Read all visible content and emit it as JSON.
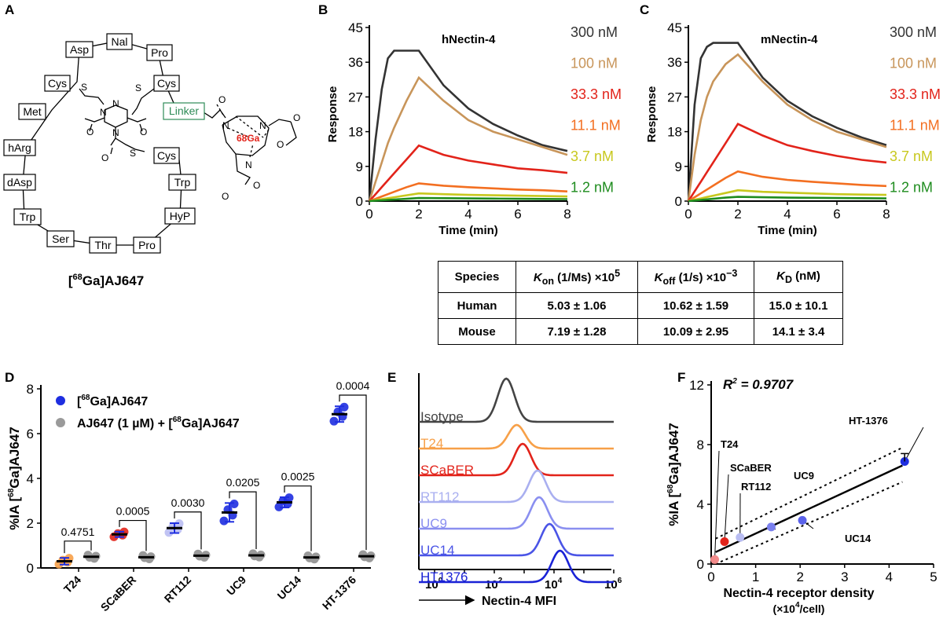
{
  "panels": {
    "A": "A",
    "B": "B",
    "C": "C",
    "D": "D",
    "E": "E",
    "F": "F"
  },
  "panelA": {
    "compound": "[68Ga]AJ647",
    "residues": [
      "Asp",
      "Nal",
      "Pro",
      "Cys",
      "Cys",
      "Linker",
      "Met",
      "hArg",
      "dAsp",
      "Trp",
      "Ser",
      "Thr",
      "Pro",
      "HyP",
      "Trp",
      "Cys"
    ],
    "atoms": {
      "S": "S",
      "N": "N",
      "O": "O",
      "Ga": "68Ga"
    }
  },
  "spr": {
    "concentrations": [
      "300 nM",
      "100 nM",
      "33.3 nM",
      "11.1 nM",
      "3.7 nM",
      "1.2 nM"
    ],
    "colors": [
      "#333333",
      "#c8955a",
      "#e2231a",
      "#f36f21",
      "#c8c81e",
      "#1e8c1e"
    ],
    "ylabel": "Response",
    "xlabel": "Time (min)",
    "xticks": [
      "0",
      "2",
      "4",
      "6",
      "8"
    ],
    "yticks": [
      "0",
      "9",
      "18",
      "27",
      "36",
      "45"
    ]
  },
  "chart_data": [
    {
      "type": "line",
      "panel": "B",
      "title": "hNectin-4",
      "xlabel": "Time (min)",
      "ylabel": "Response",
      "xlim": [
        0,
        8
      ],
      "ylim": [
        0,
        45
      ],
      "x": [
        0,
        0.25,
        0.5,
        0.75,
        1.0,
        1.5,
        2.0,
        3.0,
        4.0,
        5.0,
        6.0,
        7.0,
        8.0
      ],
      "series": [
        {
          "name": "300 nM",
          "values": [
            0,
            16,
            29,
            37,
            39,
            39,
            39,
            30,
            24,
            20,
            17,
            14.5,
            13
          ]
        },
        {
          "name": "100 nM",
          "values": [
            0,
            5,
            10,
            15,
            19,
            26,
            32,
            26,
            21,
            18,
            16,
            14,
            12
          ]
        },
        {
          "name": "33.3 nM",
          "values": [
            0,
            1.8,
            3.6,
            5.4,
            7.2,
            10.8,
            14.4,
            12,
            10.5,
            9.5,
            8.5,
            8,
            7.3
          ]
        },
        {
          "name": "11.1 nM",
          "values": [
            0,
            0.6,
            1.2,
            1.8,
            2.4,
            3.6,
            4.6,
            4,
            3.6,
            3.3,
            3,
            2.8,
            2.5
          ]
        },
        {
          "name": "3.7 nM",
          "values": [
            0,
            0.25,
            0.5,
            0.75,
            1,
            1.5,
            2,
            1.8,
            1.6,
            1.5,
            1.4,
            1.3,
            1.2
          ]
        },
        {
          "name": "1.2 nM",
          "values": [
            0,
            0.1,
            0.2,
            0.3,
            0.4,
            0.6,
            0.8,
            0.75,
            0.7,
            0.65,
            0.6,
            0.55,
            0.5
          ]
        }
      ]
    },
    {
      "type": "line",
      "panel": "C",
      "title": "mNectin-4",
      "xlabel": "Time (min)",
      "ylabel": "Response",
      "xlim": [
        0,
        8
      ],
      "ylim": [
        0,
        45
      ],
      "x": [
        0,
        0.25,
        0.5,
        0.75,
        1.0,
        1.5,
        2.0,
        3.0,
        4.0,
        5.0,
        6.0,
        7.0,
        8.0
      ],
      "series": [
        {
          "name": "300 nM",
          "values": [
            0,
            25,
            37,
            40,
            41,
            41,
            41,
            32,
            26,
            22,
            19,
            16.5,
            14.5
          ]
        },
        {
          "name": "100 nM",
          "values": [
            0,
            12,
            21,
            27,
            31,
            35.5,
            38,
            31,
            25,
            21,
            18,
            16,
            14
          ]
        },
        {
          "name": "33.3 nM",
          "values": [
            0,
            2.5,
            5,
            7.5,
            10,
            15,
            20,
            17,
            14.5,
            13,
            11.7,
            10.7,
            10
          ]
        },
        {
          "name": "11.1 nM",
          "values": [
            0,
            1,
            2,
            3,
            4,
            6,
            7.7,
            6.3,
            5.5,
            5,
            4.6,
            4.2,
            3.9
          ]
        },
        {
          "name": "3.7 nM",
          "values": [
            0,
            0.35,
            0.7,
            1.05,
            1.4,
            2.1,
            2.8,
            2.4,
            2.2,
            2,
            1.8,
            1.7,
            1.6
          ]
        },
        {
          "name": "1.2 nM",
          "values": [
            0,
            0.15,
            0.3,
            0.45,
            0.6,
            0.9,
            1.1,
            1,
            0.9,
            0.85,
            0.8,
            0.75,
            0.7
          ]
        }
      ]
    },
    {
      "type": "scatter",
      "panel": "D",
      "ylabel": "%IA [68Ga]AJ647",
      "ylim": [
        0,
        8
      ],
      "categories": [
        "T24",
        "SCaBER",
        "RT112",
        "UC9",
        "UC14",
        "HT-1376"
      ],
      "series": [
        {
          "name": "[68Ga]AJ647",
          "values": [
            0.3,
            1.5,
            1.78,
            2.48,
            2.93,
            6.87
          ],
          "sd": [
            0.15,
            0.12,
            0.22,
            0.42,
            0.23,
            0.35
          ]
        },
        {
          "name": "AJ647 (1 µM) + [68Ga]AJ647",
          "values": [
            0.5,
            0.48,
            0.55,
            0.56,
            0.47,
            0.52
          ],
          "sd": [
            0.06,
            0.08,
            0.06,
            0.05,
            0.05,
            0.05
          ]
        }
      ],
      "pvalues": [
        "0.4751",
        "0.0005",
        "0.0030",
        "0.0205",
        "0.0025",
        "0.0004"
      ]
    },
    {
      "type": "area",
      "panel": "E",
      "xlabel": "Nectin-4 MFI",
      "xticks": [
        "10^0",
        "10^2",
        "10^4",
        "10^6"
      ],
      "labels": [
        "Isotype",
        "T24",
        "SCaBER",
        "RT112",
        "UC9",
        "UC14",
        "HT1376"
      ],
      "colors": [
        "#444444",
        "#f7a048",
        "#e2231a",
        "#a9aff0",
        "#8a8ff0",
        "#4a54e6",
        "#1a22d6"
      ],
      "peak_log10": [
        2.4,
        2.75,
        2.95,
        3.45,
        3.5,
        3.85,
        4.2
      ]
    },
    {
      "type": "scatter",
      "panel": "F",
      "annotation": "R² = 0.9707",
      "xlabel": "Nectin-4 receptor density",
      "xlabel2": "(×10⁴/cell)",
      "ylabel": "%IA [68Ga]AJ647",
      "xlim": [
        0,
        5
      ],
      "ylim": [
        0,
        12
      ],
      "xticks": [
        "0",
        "1",
        "2",
        "3",
        "4",
        "5"
      ],
      "yticks": [
        "0",
        "4",
        "8",
        "12"
      ],
      "points": [
        {
          "label": "T24",
          "x": 0.08,
          "y": 0.3,
          "color": "#f28b8b"
        },
        {
          "label": "SCaBER",
          "x": 0.3,
          "y": 1.5,
          "color": "#e2231a"
        },
        {
          "label": "RT112",
          "x": 0.65,
          "y": 1.78,
          "color": "#b9bdf2"
        },
        {
          "label": "UC9",
          "x": 1.35,
          "y": 2.48,
          "color": "#7a80ee"
        },
        {
          "label": "UC14",
          "x": 2.05,
          "y": 2.93,
          "color": "#5a62ea"
        },
        {
          "label": "HT-1376",
          "x": 4.35,
          "y": 6.87,
          "color": "#1e2ee0"
        }
      ]
    }
  ],
  "table": {
    "headers": {
      "species": "Species",
      "kon": "K",
      "kon_sub": "on",
      "kon_unit": " (1/Ms) ×10",
      "kon_exp": "5",
      "koff": "K",
      "koff_sub": "off",
      "koff_unit": " (1/s) ×10",
      "koff_exp": "−3",
      "kd": "K",
      "kd_sub": "D",
      "kd_unit": " (nM)"
    },
    "rows": [
      {
        "species": "Human",
        "kon": "5.03 ± 1.06",
        "koff": "10.62 ± 1.59",
        "kd": "15.0 ± 10.1"
      },
      {
        "species": "Mouse",
        "kon": "7.19 ± 1.28",
        "koff": "10.09 ± 2.95",
        "kd": "14.1 ± 3.4"
      }
    ]
  },
  "legendD": {
    "sup": "68",
    "ga_prefix": "[",
    "ga_rest": "Ga]AJ647",
    "block": "AJ647 (1 µM) + [",
    "block_end": "Ga]AJ647"
  },
  "axisD": {
    "ylabel_a": "%IA [",
    "ylabel_sup": "68",
    "ylabel_b": "Ga]AJ647",
    "yticks": [
      "0",
      "2",
      "4",
      "6",
      "8"
    ]
  },
  "axisF": {
    "r2_a": "R",
    "r2_sup": "2",
    "r2_b": " = 0.9707",
    "ylabel_a": "%IA [",
    "ylabel_sup": "68",
    "ylabel_b": "Ga]AJ647",
    "xlabel": "Nectin-4 receptor density",
    "xlabel2_a": "(×10",
    "xlabel2_sup": "4",
    "xlabel2_b": "/cell)"
  },
  "axisE": {
    "xlabel": "Nectin-4 MFI",
    "base": "10",
    "exps": [
      "0",
      "2",
      "4",
      "6"
    ]
  },
  "compoundLabel": {
    "a": "[",
    "sup": "68",
    "b": "Ga]AJ647"
  }
}
